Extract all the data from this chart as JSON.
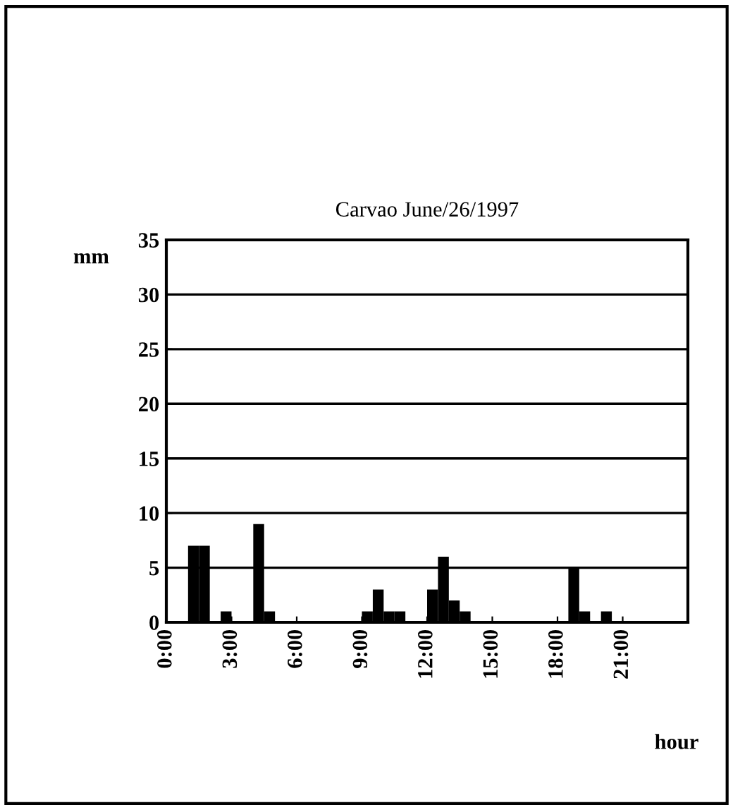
{
  "chart_data": {
    "type": "bar",
    "title": "Carvao June/26/1997",
    "xlabel": "hour",
    "ylabel": "mm",
    "x": [
      1.25,
      1.75,
      2.75,
      4.25,
      4.75,
      9.25,
      9.75,
      10.25,
      10.75,
      12.25,
      12.75,
      13.25,
      13.75,
      18.75,
      19.25,
      20.25
    ],
    "values": [
      7,
      7,
      1,
      9,
      1,
      1,
      3,
      1,
      1,
      3,
      6,
      2,
      1,
      5,
      1,
      1
    ],
    "color": "#000000",
    "xlim": [
      0,
      24
    ],
    "xticks": [
      {
        "value": 0,
        "label": "0:00"
      },
      {
        "value": 3,
        "label": "3:00"
      },
      {
        "value": 6,
        "label": "6:00"
      },
      {
        "value": 9,
        "label": "9:00"
      },
      {
        "value": 12,
        "label": "12:00"
      },
      {
        "value": 15,
        "label": "15:00"
      },
      {
        "value": 18,
        "label": "18:00"
      },
      {
        "value": 21,
        "label": "21:00"
      }
    ],
    "ylim": [
      0,
      35
    ],
    "yticks": [
      0,
      5,
      10,
      15,
      20,
      25,
      30,
      35
    ],
    "grid": "y"
  }
}
